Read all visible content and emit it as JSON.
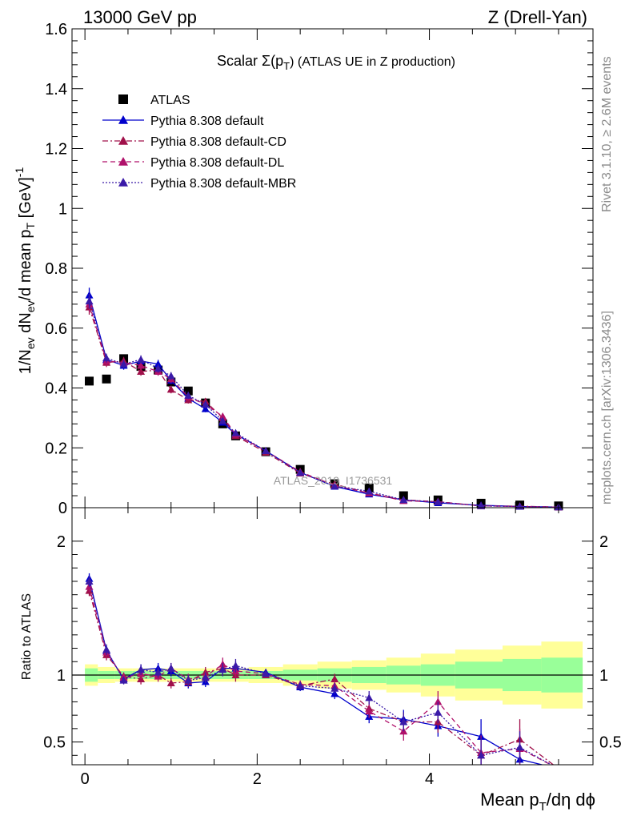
{
  "header": {
    "left": "13000 GeV pp",
    "right": "Z (Drell-Yan)"
  },
  "side_text": {
    "rivet": "Rivet 3.1.10, ≥ 2.6M events",
    "mcplots": "mcplots.cern.ch [arXiv:1306.3436]"
  },
  "watermark": "ATLAS_2019_I1736531",
  "colors": {
    "atlas": "#000000",
    "default": "#0000cc",
    "cd": "#a0104a",
    "dl": "#b0106a",
    "mbr": "#3a1aa8",
    "band_inner": "#99ff99",
    "band_outer": "#ffff99"
  },
  "chart_data": [
    {
      "type": "scatter",
      "panel": "main",
      "title": "Scalar Σ(p_T) (ATLAS UE in Z production)",
      "title_main": "Scalar Σ(p",
      "title_sub": "T",
      "title_rest": ") (ATLAS UE in Z production)",
      "ylabel": "1/N_ev dN_ev/d mean p_T [GeV]^-1",
      "ylabel_parts": {
        "a": "1/N",
        "a_sub": "ev",
        "b": " dN",
        "b_sub": "ev",
        "c": "/d mean p",
        "c_sub": "T",
        "d": " [GeV]",
        "d_sup": "-1"
      },
      "xlim": [
        -0.15,
        5.9
      ],
      "ylim": [
        0,
        1.6
      ],
      "yticks": [
        0,
        0.2,
        0.4,
        0.6,
        0.8,
        1,
        1.2,
        1.4,
        1.6
      ],
      "ytick_labels": [
        "0",
        "0.2",
        "0.4",
        "0.6",
        "0.8",
        "1",
        "1.2",
        "1.4",
        "1.6"
      ],
      "x": [
        0.05,
        0.25,
        0.45,
        0.65,
        0.85,
        1.0,
        1.2,
        1.4,
        1.6,
        1.75,
        2.1,
        2.5,
        2.9,
        3.3,
        3.7,
        4.1,
        4.6,
        5.05,
        5.5
      ],
      "series": [
        {
          "name": "ATLAS",
          "key": "atlas",
          "marker": "square",
          "line": "none",
          "values": [
            0.423,
            0.43,
            0.498,
            0.472,
            0.46,
            0.42,
            0.39,
            0.35,
            0.28,
            0.24,
            0.187,
            0.128,
            0.08,
            0.066,
            0.04,
            0.026,
            0.015,
            0.009,
            0.006
          ]
        },
        {
          "name": "Pythia 8.308 default",
          "key": "default",
          "marker": "triangle",
          "line": "solid",
          "values": [
            0.71,
            0.495,
            0.475,
            0.49,
            0.48,
            0.425,
            0.365,
            0.33,
            0.285,
            0.245,
            0.19,
            0.118,
            0.071,
            0.045,
            0.026,
            0.016,
            0.008,
            0.004,
            0.002
          ],
          "errors": [
            0.025,
            0.015,
            0.014,
            0.014,
            0.014,
            0.013,
            0.012,
            0.011,
            0.01,
            0.009,
            0.007,
            0.005,
            0.004,
            0.003,
            0.002,
            0.002,
            0.001,
            0.001,
            0.001
          ]
        },
        {
          "name": "Pythia 8.308 default-CD",
          "key": "cd",
          "marker": "triangle",
          "line": "dashdot",
          "values": [
            0.67,
            0.485,
            0.49,
            0.455,
            0.46,
            0.395,
            0.36,
            0.355,
            0.3,
            0.24,
            0.185,
            0.115,
            0.078,
            0.049,
            0.026,
            0.02,
            0.006,
            0.005,
            0.002
          ],
          "errors": [
            0.025,
            0.015,
            0.014,
            0.014,
            0.014,
            0.013,
            0.012,
            0.011,
            0.01,
            0.009,
            0.007,
            0.005,
            0.004,
            0.003,
            0.002,
            0.002,
            0.001,
            0.001,
            0.001
          ]
        },
        {
          "name": "Pythia 8.308 default-DL",
          "key": "dl",
          "marker": "triangle",
          "line": "dashed",
          "values": [
            0.68,
            0.49,
            0.485,
            0.475,
            0.455,
            0.43,
            0.37,
            0.345,
            0.305,
            0.245,
            0.19,
            0.12,
            0.074,
            0.049,
            0.023,
            0.02,
            0.006,
            0.004,
            0.002
          ],
          "errors": [
            0.025,
            0.015,
            0.014,
            0.014,
            0.014,
            0.013,
            0.012,
            0.011,
            0.01,
            0.009,
            0.007,
            0.005,
            0.004,
            0.003,
            0.002,
            0.002,
            0.001,
            0.001,
            0.001
          ]
        },
        {
          "name": "Pythia 8.308 default-MBR",
          "key": "mbr",
          "marker": "triangle",
          "line": "dotted",
          "values": [
            0.69,
            0.5,
            0.48,
            0.495,
            0.465,
            0.44,
            0.375,
            0.345,
            0.29,
            0.25,
            0.19,
            0.117,
            0.072,
            0.055,
            0.026,
            0.019,
            0.006,
            0.004,
            0.002
          ],
          "errors": [
            0.025,
            0.015,
            0.014,
            0.014,
            0.014,
            0.013,
            0.012,
            0.011,
            0.01,
            0.009,
            0.007,
            0.005,
            0.004,
            0.003,
            0.002,
            0.002,
            0.001,
            0.001,
            0.001
          ]
        }
      ],
      "legend_position": "top-left"
    },
    {
      "type": "line",
      "panel": "ratio",
      "ylabel": "Ratio to ATLAS",
      "xlabel": "Mean p_T/dη dϕ",
      "xlabel_parts": {
        "a": "Mean p",
        "a_sub": "T",
        "b": "/dη dϕ"
      },
      "xlim": [
        -0.15,
        5.9
      ],
      "ylim": [
        0.33,
        2.25
      ],
      "yticks": [
        0.5,
        1,
        2
      ],
      "ytick_labels": [
        "0.5",
        "1",
        "2"
      ],
      "xticks": [
        0,
        2,
        4
      ],
      "xtick_labels": [
        "0",
        "2",
        "4"
      ],
      "x": [
        0.05,
        0.25,
        0.45,
        0.65,
        0.85,
        1.0,
        1.2,
        1.4,
        1.6,
        1.75,
        2.1,
        2.5,
        2.9,
        3.3,
        3.7,
        4.1,
        4.6,
        5.05,
        5.5
      ],
      "band": {
        "x_edges": [
          -0.0,
          0.15,
          0.35,
          0.55,
          0.75,
          0.95,
          1.1,
          1.3,
          1.5,
          1.7,
          1.9,
          2.3,
          2.7,
          3.1,
          3.5,
          3.9,
          4.3,
          4.85,
          5.3,
          5.9
        ],
        "inner": [
          0.05,
          0.03,
          0.03,
          0.03,
          0.03,
          0.03,
          0.03,
          0.03,
          0.03,
          0.03,
          0.03,
          0.04,
          0.05,
          0.06,
          0.07,
          0.08,
          0.1,
          0.12,
          0.13
        ],
        "outer": [
          0.08,
          0.06,
          0.05,
          0.05,
          0.05,
          0.05,
          0.05,
          0.05,
          0.05,
          0.05,
          0.06,
          0.08,
          0.1,
          0.11,
          0.13,
          0.16,
          0.19,
          0.22,
          0.25
        ]
      },
      "series": [
        {
          "name": "Pythia 8.308 default",
          "key": "default",
          "line": "solid",
          "values": [
            1.72,
            1.18,
            0.97,
            1.04,
            1.05,
            1.03,
            0.94,
            0.95,
            1.05,
            1.05,
            1.02,
            0.91,
            0.86,
            0.69,
            0.67,
            0.62,
            0.54,
            0.37,
            0.3
          ],
          "errors": [
            0.04,
            0.04,
            0.03,
            0.04,
            0.04,
            0.04,
            0.04,
            0.04,
            0.05,
            0.05,
            0.02,
            0.03,
            0.04,
            0.05,
            0.07,
            0.08,
            0.13,
            0.1,
            0.0
          ]
        },
        {
          "name": "Pythia 8.308 default-CD",
          "key": "cd",
          "line": "dashdot",
          "values": [
            1.63,
            1.15,
            0.99,
            0.97,
            1.0,
            0.94,
            0.95,
            1.02,
            1.05,
            1.0,
            1.0,
            0.92,
            0.97,
            0.75,
            0.65,
            0.65,
            0.4,
            0.52,
            0.3
          ],
          "errors": [
            0.04,
            0.04,
            0.03,
            0.04,
            0.04,
            0.04,
            0.04,
            0.04,
            0.05,
            0.05,
            0.02,
            0.03,
            0.04,
            0.05,
            0.07,
            0.08,
            0.13,
            0.15,
            0.0
          ]
        },
        {
          "name": "Pythia 8.308 default-DL",
          "key": "dl",
          "line": "dashed",
          "values": [
            1.66,
            1.17,
            0.98,
            1.01,
            0.99,
            1.05,
            0.97,
            0.99,
            1.08,
            1.03,
            1.01,
            0.93,
            0.92,
            0.73,
            0.58,
            0.8,
            0.42,
            0.45,
            0.3
          ],
          "errors": [
            0.04,
            0.04,
            0.03,
            0.04,
            0.04,
            0.04,
            0.04,
            0.04,
            0.05,
            0.05,
            0.02,
            0.03,
            0.04,
            0.05,
            0.07,
            0.08,
            0.13,
            0.15,
            0.0
          ]
        },
        {
          "name": "Pythia 8.308 default-MBR",
          "key": "mbr",
          "line": "dotted",
          "values": [
            1.7,
            1.19,
            0.96,
            1.04,
            1.02,
            1.05,
            0.96,
            0.98,
            1.04,
            1.07,
            1.01,
            0.92,
            0.9,
            0.83,
            0.65,
            0.72,
            0.4,
            0.46,
            0.3
          ],
          "errors": [
            0.04,
            0.04,
            0.03,
            0.04,
            0.04,
            0.04,
            0.04,
            0.04,
            0.05,
            0.05,
            0.02,
            0.03,
            0.04,
            0.05,
            0.07,
            0.08,
            0.13,
            0.12,
            0.0
          ]
        }
      ]
    }
  ]
}
